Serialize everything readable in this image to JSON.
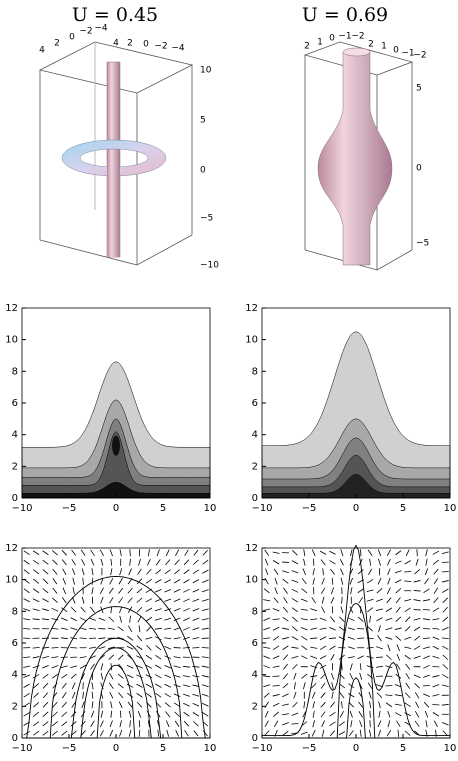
{
  "titles": [
    "U = 0.45",
    "U = 0.69"
  ],
  "surface_plots": [
    {
      "top_ticks": [
        "4",
        "2",
        "0",
        "−2",
        "−4",
        "4",
        "2",
        "0",
        "−2",
        "−4"
      ],
      "side_ticks": [
        "10",
        "5",
        "0",
        "−5",
        "−10"
      ]
    },
    {
      "top_ticks": [
        "2",
        "1",
        "0",
        "−1",
        "−2",
        "2",
        "1",
        "0",
        "−1",
        "−2"
      ],
      "side_ticks": [
        "5",
        "0",
        "−5"
      ]
    }
  ],
  "contour_plots": [
    {
      "x_ticks": [
        "−10",
        "−5",
        "0",
        "5",
        "10"
      ],
      "y_ticks": [
        "0",
        "2",
        "4",
        "6",
        "8",
        "10",
        "12"
      ]
    },
    {
      "x_ticks": [
        "−10",
        "−5",
        "0",
        "5",
        "10"
      ],
      "y_ticks": [
        "0",
        "2",
        "4",
        "6",
        "8",
        "10",
        "12"
      ]
    }
  ],
  "vector_plots": [
    {
      "x_ticks": [
        "−10",
        "−5",
        "0",
        "5",
        "10"
      ],
      "y_ticks": [
        "0",
        "2",
        "4",
        "6",
        "8",
        "10",
        "12"
      ]
    },
    {
      "x_ticks": [
        "−10",
        "−5",
        "0",
        "5",
        "10"
      ],
      "y_ticks": [
        "0",
        "2",
        "4",
        "6",
        "8",
        "10",
        "12"
      ]
    }
  ]
}
